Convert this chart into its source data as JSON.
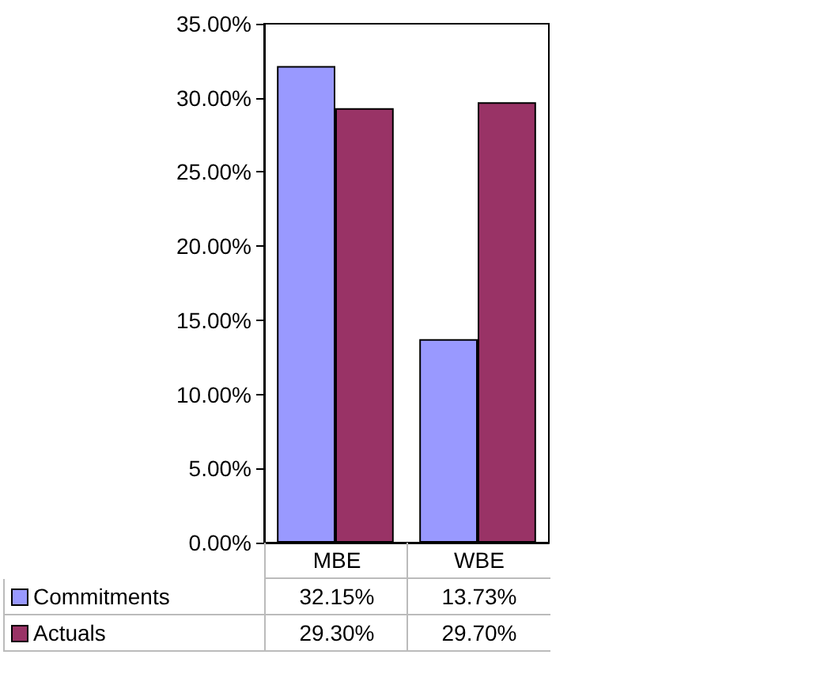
{
  "chart_data": {
    "type": "bar",
    "categories": [
      "MBE",
      "WBE"
    ],
    "series": [
      {
        "name": "Commitments",
        "color": "#9999ff",
        "values": [
          32.15,
          13.73
        ],
        "value_labels": [
          "32.15%",
          "13.73%"
        ]
      },
      {
        "name": "Actuals",
        "color": "#993366",
        "values": [
          29.3,
          29.7
        ],
        "value_labels": [
          "29.30%",
          "29.70%"
        ]
      }
    ],
    "ylim": [
      0,
      35
    ],
    "yticks": [
      {
        "value": 0,
        "label": "0.00%"
      },
      {
        "value": 5,
        "label": "5.00%"
      },
      {
        "value": 10,
        "label": "10.00%"
      },
      {
        "value": 15,
        "label": "15.00%"
      },
      {
        "value": 20,
        "label": "20.00%"
      },
      {
        "value": 25,
        "label": "25.00%"
      },
      {
        "value": 30,
        "label": "30.00%"
      },
      {
        "value": 35,
        "label": "35.00%"
      }
    ],
    "grid": false,
    "legend": "bottom"
  }
}
